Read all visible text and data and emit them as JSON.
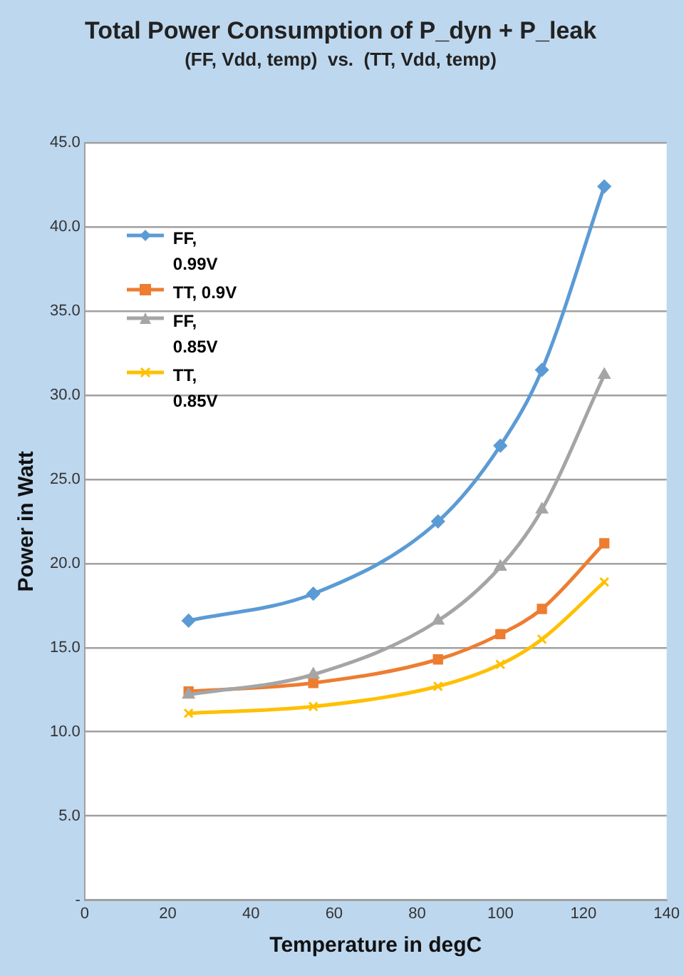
{
  "chart_data": {
    "type": "line",
    "title": "Total Power Consumption of P_dyn + P_leak",
    "subtitle": "(FF, Vdd, temp)  vs.  (TT, Vdd, temp)",
    "xlabel": "Temperature in degC",
    "ylabel": "Power in Watt",
    "x": [
      25,
      55,
      85,
      100,
      110,
      125
    ],
    "series": [
      {
        "name": "FF, 0.99V",
        "color": "#5b9bd5",
        "marker": "diamond",
        "values": [
          16.6,
          18.2,
          22.5,
          27.0,
          31.5,
          42.4
        ]
      },
      {
        "name": "TT, 0.9V",
        "color": "#ed7d31",
        "marker": "square",
        "values": [
          12.4,
          12.9,
          14.3,
          15.8,
          17.3,
          21.2
        ]
      },
      {
        "name": "FF, 0.85V",
        "color": "#a5a5a5",
        "marker": "triangle",
        "values": [
          12.2,
          13.4,
          16.6,
          19.8,
          23.2,
          31.2
        ]
      },
      {
        "name": "TT, 0.85V",
        "color": "#ffc000",
        "marker": "cross",
        "values": [
          11.1,
          11.5,
          12.7,
          14.0,
          15.5,
          18.9
        ]
      }
    ],
    "xlim": [
      0,
      140
    ],
    "xticks": [
      0,
      20,
      40,
      60,
      80,
      100,
      120,
      140
    ],
    "ylim": [
      0,
      45
    ],
    "yticks": [
      {
        "value": 0,
        "label": "-"
      },
      {
        "value": 5,
        "label": "5.0"
      },
      {
        "value": 10,
        "label": "10.0"
      },
      {
        "value": 15,
        "label": "15.0"
      },
      {
        "value": 20,
        "label": "20.0"
      },
      {
        "value": 25,
        "label": "25.0"
      },
      {
        "value": 30,
        "label": "30.0"
      },
      {
        "value": 35,
        "label": "35.0"
      },
      {
        "value": 40,
        "label": "40.0"
      },
      {
        "value": 45,
        "label": "45.0"
      }
    ],
    "grid": "y",
    "legend": "top left"
  }
}
